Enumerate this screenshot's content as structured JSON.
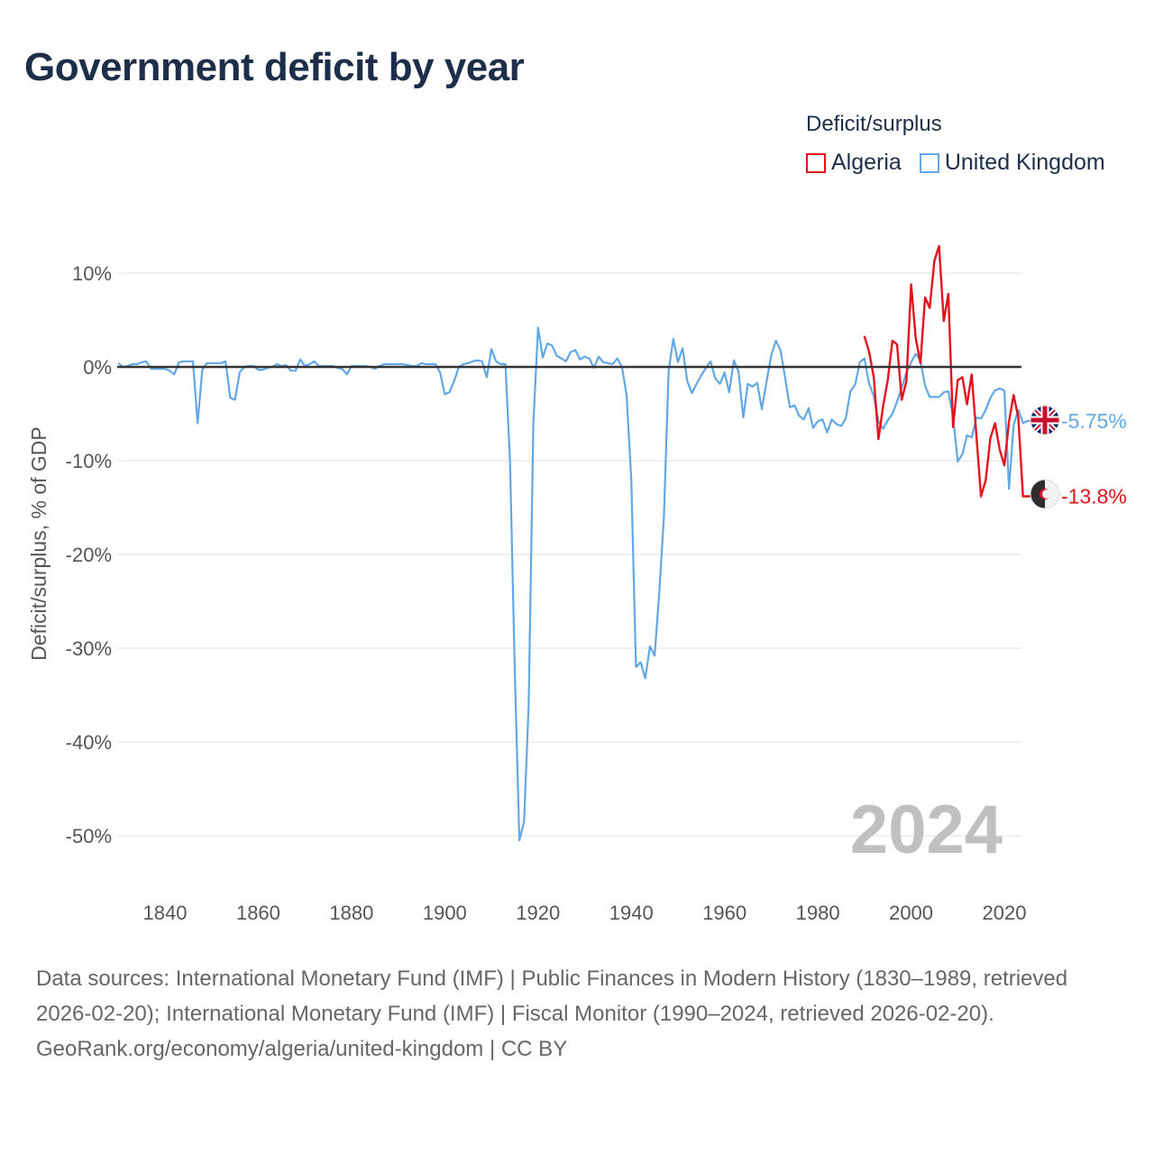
{
  "title": "Government deficit by year",
  "legend": {
    "title": "Deficit/surplus",
    "items": [
      {
        "name": "Algeria",
        "color": "#e3121b"
      },
      {
        "name": "United Kingdom",
        "color": "#62a8e5"
      }
    ]
  },
  "year_label": "2024",
  "footer": {
    "sources": "Data sources: International Monetary Fund (IMF) | Public Finances in Modern History (1830–1989, retrieved 2026-02-20); International Monetary Fund (IMF) | Fiscal Monitor (1990–2024, retrieved 2026-02-20).",
    "credit": "GeoRank.org/economy/algeria/united-kingdom | CC BY"
  },
  "chart_data": {
    "type": "line",
    "title": "Government deficit by year",
    "xlabel": "",
    "ylabel": "Deficit/surplus, % of GDP",
    "xlim": [
      1830,
      2024
    ],
    "ylim": [
      -55,
      14
    ],
    "x_ticks": [
      1840,
      1860,
      1880,
      1900,
      1920,
      1940,
      1960,
      1980,
      2000,
      2020
    ],
    "y_ticks": [
      10,
      0,
      -10,
      -20,
      -30,
      -40,
      -50
    ],
    "y_tick_labels": [
      "10%",
      "0%",
      "-10%",
      "-20%",
      "-30%",
      "-40%",
      "-50%"
    ],
    "grid": true,
    "series": [
      {
        "name": "United Kingdom",
        "color": "#62a8e5",
        "end_label": "-5.75%",
        "points": [
          [
            1830,
            0.4
          ],
          [
            1831,
            0.0
          ],
          [
            1832,
            0.1
          ],
          [
            1833,
            0.3
          ],
          [
            1834,
            0.3
          ],
          [
            1835,
            0.5
          ],
          [
            1836,
            0.6
          ],
          [
            1837,
            -0.2
          ],
          [
            1838,
            -0.2
          ],
          [
            1839,
            -0.2
          ],
          [
            1840,
            -0.2
          ],
          [
            1841,
            -0.4
          ],
          [
            1842,
            -0.8
          ],
          [
            1843,
            0.5
          ],
          [
            1844,
            0.6
          ],
          [
            1845,
            0.6
          ],
          [
            1846,
            0.6
          ],
          [
            1847,
            -6.0
          ],
          [
            1848,
            -0.3
          ],
          [
            1849,
            0.4
          ],
          [
            1850,
            0.4
          ],
          [
            1851,
            0.4
          ],
          [
            1852,
            0.4
          ],
          [
            1853,
            0.6
          ],
          [
            1854,
            -3.3
          ],
          [
            1855,
            -3.5
          ],
          [
            1856,
            -0.6
          ],
          [
            1857,
            0.0
          ],
          [
            1858,
            0.1
          ],
          [
            1859,
            0.1
          ],
          [
            1860,
            -0.3
          ],
          [
            1861,
            -0.3
          ],
          [
            1862,
            -0.1
          ],
          [
            1863,
            0.0
          ],
          [
            1864,
            0.3
          ],
          [
            1865,
            0.1
          ],
          [
            1866,
            0.2
          ],
          [
            1867,
            -0.4
          ],
          [
            1868,
            -0.4
          ],
          [
            1869,
            0.8
          ],
          [
            1870,
            0.1
          ],
          [
            1871,
            0.3
          ],
          [
            1872,
            0.6
          ],
          [
            1873,
            0.1
          ],
          [
            1874,
            0.1
          ],
          [
            1875,
            0.1
          ],
          [
            1876,
            0.1
          ],
          [
            1877,
            -0.1
          ],
          [
            1878,
            -0.2
          ],
          [
            1879,
            -0.8
          ],
          [
            1880,
            0.1
          ],
          [
            1881,
            0.1
          ],
          [
            1882,
            0.1
          ],
          [
            1883,
            0.1
          ],
          [
            1884,
            0.0
          ],
          [
            1885,
            -0.2
          ],
          [
            1886,
            0.1
          ],
          [
            1887,
            0.3
          ],
          [
            1888,
            0.3
          ],
          [
            1889,
            0.3
          ],
          [
            1890,
            0.3
          ],
          [
            1891,
            0.3
          ],
          [
            1892,
            0.2
          ],
          [
            1893,
            0.1
          ],
          [
            1894,
            0.1
          ],
          [
            1895,
            0.4
          ],
          [
            1896,
            0.3
          ],
          [
            1897,
            0.3
          ],
          [
            1898,
            0.3
          ],
          [
            1899,
            -0.6
          ],
          [
            1900,
            -2.9
          ],
          [
            1901,
            -2.7
          ],
          [
            1902,
            -1.5
          ],
          [
            1903,
            0.0
          ],
          [
            1904,
            0.3
          ],
          [
            1905,
            0.4
          ],
          [
            1906,
            0.6
          ],
          [
            1907,
            0.7
          ],
          [
            1908,
            0.6
          ],
          [
            1909,
            -1.1
          ],
          [
            1910,
            1.9
          ],
          [
            1911,
            0.6
          ],
          [
            1912,
            0.3
          ],
          [
            1913,
            0.3
          ],
          [
            1914,
            -10.0
          ],
          [
            1915,
            -32.0
          ],
          [
            1916,
            -50.5
          ],
          [
            1917,
            -48.5
          ],
          [
            1918,
            -36.0
          ],
          [
            1919,
            -6.0
          ],
          [
            1920,
            4.2
          ],
          [
            1921,
            1.0
          ],
          [
            1922,
            2.5
          ],
          [
            1923,
            2.3
          ],
          [
            1924,
            1.2
          ],
          [
            1925,
            0.9
          ],
          [
            1926,
            0.6
          ],
          [
            1927,
            1.6
          ],
          [
            1928,
            1.8
          ],
          [
            1929,
            0.8
          ],
          [
            1930,
            1.1
          ],
          [
            1931,
            0.9
          ],
          [
            1932,
            -0.1
          ],
          [
            1933,
            1.1
          ],
          [
            1934,
            0.5
          ],
          [
            1935,
            0.4
          ],
          [
            1936,
            0.3
          ],
          [
            1937,
            0.9
          ],
          [
            1938,
            0.0
          ],
          [
            1939,
            -3.0
          ],
          [
            1940,
            -12.0
          ],
          [
            1941,
            -32.0
          ],
          [
            1942,
            -31.5
          ],
          [
            1943,
            -33.2
          ],
          [
            1944,
            -29.8
          ],
          [
            1945,
            -30.8
          ],
          [
            1946,
            -24.0
          ],
          [
            1947,
            -16.0
          ],
          [
            1948,
            -0.5
          ],
          [
            1949,
            3.0
          ],
          [
            1950,
            0.5
          ],
          [
            1951,
            2.0
          ],
          [
            1952,
            -1.5
          ],
          [
            1953,
            -2.8
          ],
          [
            1954,
            -1.8
          ],
          [
            1955,
            -0.9
          ],
          [
            1956,
            -0.1
          ],
          [
            1957,
            0.6
          ],
          [
            1958,
            -1.2
          ],
          [
            1959,
            -1.8
          ],
          [
            1960,
            -0.6
          ],
          [
            1961,
            -2.7
          ],
          [
            1962,
            0.7
          ],
          [
            1963,
            -0.5
          ],
          [
            1964,
            -5.4
          ],
          [
            1965,
            -1.8
          ],
          [
            1966,
            -2.1
          ],
          [
            1967,
            -1.7
          ],
          [
            1968,
            -4.5
          ],
          [
            1969,
            -1.6
          ],
          [
            1970,
            1.2
          ],
          [
            1971,
            2.8
          ],
          [
            1972,
            1.8
          ],
          [
            1973,
            -1.2
          ],
          [
            1974,
            -4.3
          ],
          [
            1975,
            -4.1
          ],
          [
            1976,
            -5.2
          ],
          [
            1977,
            -5.6
          ],
          [
            1978,
            -4.4
          ],
          [
            1979,
            -6.5
          ],
          [
            1980,
            -5.8
          ],
          [
            1981,
            -5.6
          ],
          [
            1982,
            -7.0
          ],
          [
            1983,
            -5.6
          ],
          [
            1984,
            -6.1
          ],
          [
            1985,
            -6.3
          ],
          [
            1986,
            -5.5
          ],
          [
            1987,
            -2.6
          ],
          [
            1988,
            -1.9
          ],
          [
            1989,
            0.5
          ],
          [
            1990,
            0.9
          ],
          [
            1991,
            -1.8
          ],
          [
            1992,
            -3.1
          ],
          [
            1993,
            -5.8
          ],
          [
            1994,
            -6.6
          ],
          [
            1995,
            -5.7
          ],
          [
            1996,
            -5.0
          ],
          [
            1997,
            -3.7
          ],
          [
            1998,
            -2.2
          ],
          [
            1999,
            -0.6
          ],
          [
            2000,
            0.5
          ],
          [
            2001,
            1.4
          ],
          [
            2002,
            0.7
          ],
          [
            2003,
            -2.0
          ],
          [
            2004,
            -3.2
          ],
          [
            2005,
            -3.2
          ],
          [
            2006,
            -3.2
          ],
          [
            2007,
            -2.7
          ],
          [
            2008,
            -2.6
          ],
          [
            2009,
            -5.3
          ],
          [
            2010,
            -10.1
          ],
          [
            2011,
            -9.3
          ],
          [
            2012,
            -7.3
          ],
          [
            2013,
            -7.5
          ],
          [
            2014,
            -5.4
          ],
          [
            2015,
            -5.5
          ],
          [
            2016,
            -4.6
          ],
          [
            2017,
            -3.3
          ],
          [
            2018,
            -2.5
          ],
          [
            2019,
            -2.3
          ],
          [
            2020,
            -2.5
          ],
          [
            2021,
            -13.0
          ],
          [
            2022,
            -6.2
          ],
          [
            2023,
            -4.6
          ],
          [
            2024,
            -6.0
          ],
          [
            2025,
            -5.75
          ],
          [
            2026,
            -5.75
          ]
        ]
      },
      {
        "name": "Algeria",
        "color": "#e3121b",
        "end_label": "-13.8%",
        "points": [
          [
            1990,
            3.3
          ],
          [
            1991,
            1.6
          ],
          [
            1992,
            -1.1
          ],
          [
            1993,
            -7.7
          ],
          [
            1994,
            -4.2
          ],
          [
            1995,
            -1.4
          ],
          [
            1996,
            2.8
          ],
          [
            1997,
            2.4
          ],
          [
            1998,
            -3.5
          ],
          [
            1999,
            -1.5
          ],
          [
            2000,
            8.8
          ],
          [
            2001,
            3.1
          ],
          [
            2002,
            0.4
          ],
          [
            2003,
            7.4
          ],
          [
            2004,
            6.3
          ],
          [
            2005,
            11.3
          ],
          [
            2006,
            12.9
          ],
          [
            2007,
            4.9
          ],
          [
            2008,
            7.8
          ],
          [
            2009,
            -6.4
          ],
          [
            2010,
            -1.4
          ],
          [
            2011,
            -1.1
          ],
          [
            2012,
            -4.0
          ],
          [
            2013,
            -0.8
          ],
          [
            2014,
            -7.3
          ],
          [
            2015,
            -13.8
          ],
          [
            2016,
            -12.1
          ],
          [
            2017,
            -7.6
          ],
          [
            2018,
            -6.0
          ],
          [
            2019,
            -8.8
          ],
          [
            2020,
            -10.5
          ],
          [
            2021,
            -5.8
          ],
          [
            2022,
            -3.0
          ],
          [
            2023,
            -5.4
          ],
          [
            2024,
            -13.8
          ],
          [
            2025,
            -13.8
          ],
          [
            2026,
            -13.8
          ]
        ]
      }
    ]
  }
}
